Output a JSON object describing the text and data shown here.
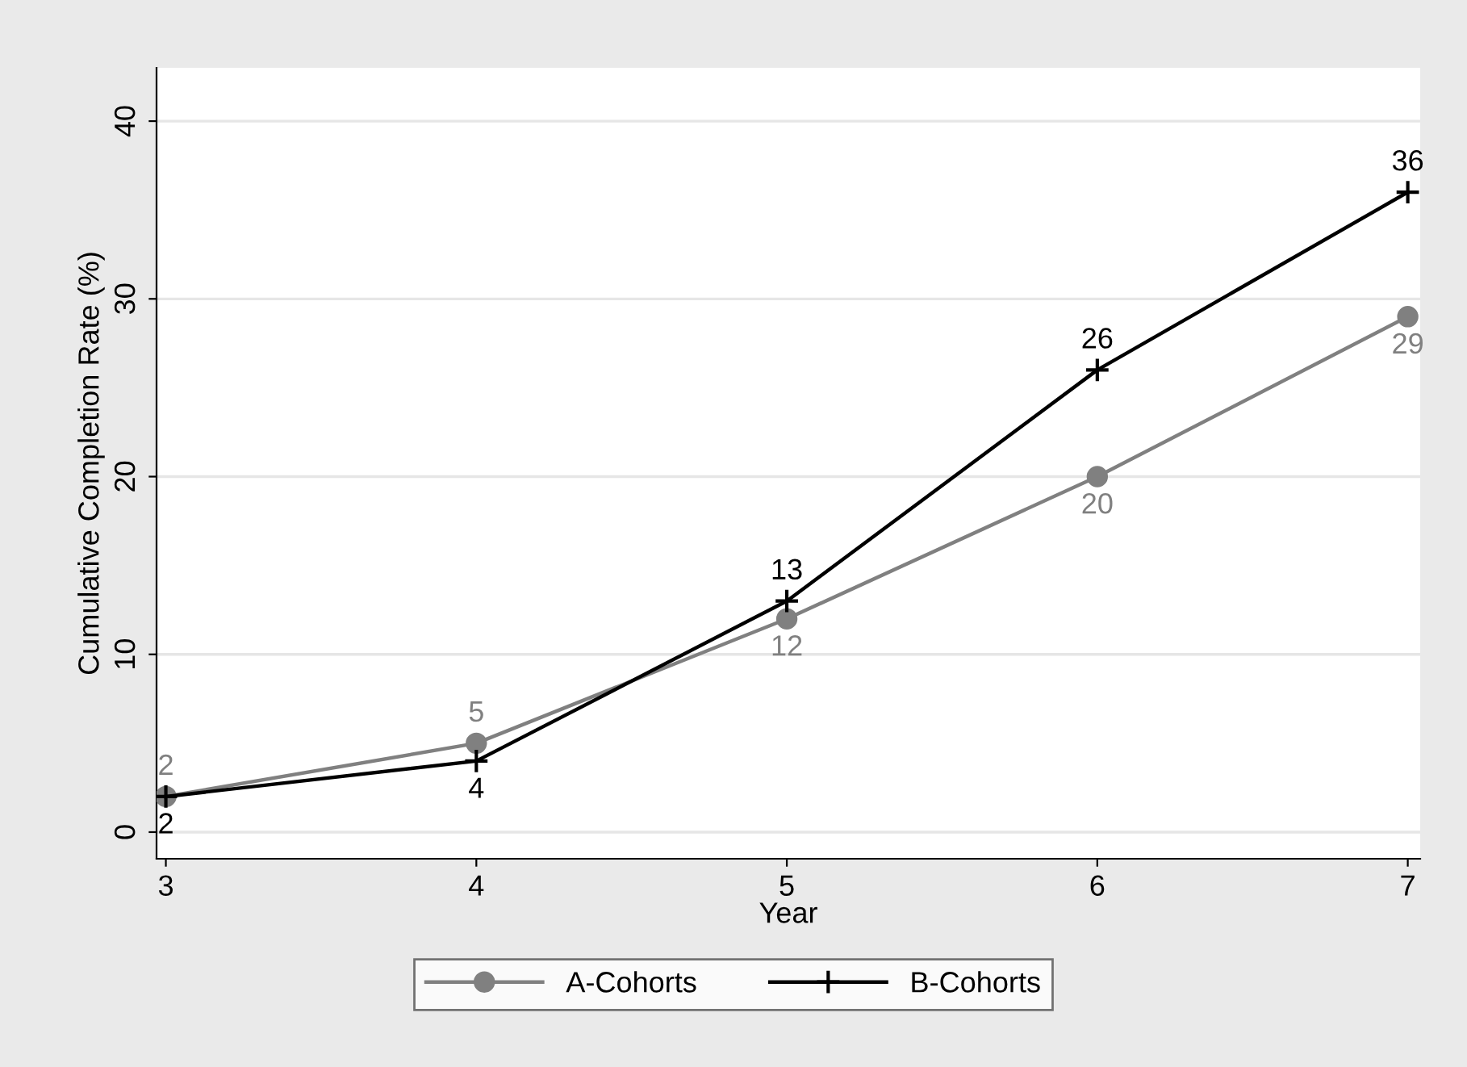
{
  "chart_data": {
    "type": "line",
    "xlabel": "Year",
    "ylabel": "Cumulative Completion Rate (%)",
    "x": [
      3,
      4,
      5,
      6,
      7
    ],
    "series": [
      {
        "name": "A-Cohorts",
        "color": "#808080",
        "marker": "circle",
        "values": [
          2,
          5,
          12,
          20,
          29
        ]
      },
      {
        "name": "B-Cohorts",
        "color": "#000000",
        "marker": "cross",
        "values": [
          2,
          4,
          13,
          26,
          36
        ]
      }
    ],
    "xlim": [
      2.97,
      7.04
    ],
    "ylim": [
      -1.5,
      43
    ],
    "xticks": [
      3,
      4,
      5,
      6,
      7
    ],
    "yticks": [
      0,
      10,
      20,
      30,
      40
    ],
    "grid": "y",
    "legend": "bottom",
    "data_labels": true
  }
}
